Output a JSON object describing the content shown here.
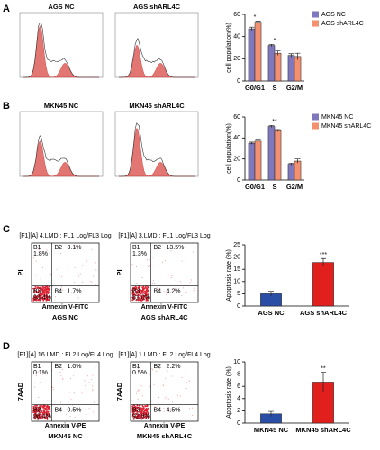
{
  "panels": [
    "A",
    "B",
    "C",
    "D"
  ],
  "flow_cytometry": {
    "histograms": [
      {
        "title": "AGS NC"
      },
      {
        "title": "AGS shARL4C"
      },
      {
        "title": "MKN45 NC"
      },
      {
        "title": "MKN45 shARL4C"
      }
    ],
    "dot_plots": [
      {
        "header": "[F1][A] 4.LMD : FL1 Log/FL3 Log",
        "y_label": "PI",
        "x_label": "Annexin V-FITC",
        "caption": "AGS NC",
        "quadrants": [
          {
            "name": "B1",
            "value": "1.8%"
          },
          {
            "name": "B2",
            "value": "3.1%"
          },
          {
            "name": "B3",
            "value": "93.4%"
          },
          {
            "name": "B4",
            "value": "1.7%"
          }
        ]
      },
      {
        "header": "[F1][A] 3.LMD : FL1 Log/FL3 Log",
        "y_label": "PI",
        "x_label": "Annexin V-FITC",
        "caption": "AGS shARL4C",
        "quadrants": [
          {
            "name": "B1",
            "value": "1.3%"
          },
          {
            "name": "B2",
            "value": "13.5%"
          },
          {
            "name": "B3",
            "value": "81.0%"
          },
          {
            "name": "B4",
            "value": "4.2%"
          }
        ]
      },
      {
        "header": "[F1][A] 16.LMD : FL2 Log/FL4 Log",
        "y_label": "7AAD",
        "x_label": "Annexin V-PE",
        "caption": "MKN45 NC",
        "quadrants": [
          {
            "name": "B1",
            "value": "0.1%"
          },
          {
            "name": "B2",
            "value": "1.0%"
          },
          {
            "name": "B3",
            "value": "98.4%"
          },
          {
            "name": "B4",
            "value": "0.5%"
          }
        ]
      },
      {
        "header": "[F1][A] 1.LMD : FL2 Log/FL4 Log",
        "y_label": "7AAD",
        "x_label": "Annexin V-PE",
        "caption": "MKN45 shARL4C",
        "quadrants": [
          {
            "name": "B1",
            "value": "0.5%"
          },
          {
            "name": "B2",
            "value": "2.2%"
          },
          {
            "name": "B3",
            "value": "92.8%"
          },
          {
            "name": "B4",
            "value": "4.5%"
          }
        ]
      }
    ]
  },
  "chart_data": [
    {
      "type": "bar",
      "y_label": "cell population(%)",
      "categories": [
        "G0/G1",
        "S",
        "G2/M"
      ],
      "series": [
        {
          "name": "AGS NC",
          "color": "#7f78bd",
          "values": [
            47,
            32,
            23
          ],
          "errors": [
            1.5,
            1,
            1.5
          ]
        },
        {
          "name": "AGS shARL4C",
          "color": "#f2906f",
          "values": [
            53,
            25,
            22
          ],
          "errors": [
            1,
            2,
            3
          ]
        }
      ],
      "annotations": [
        {
          "text": "*",
          "category": 0
        },
        {
          "text": "*",
          "category": 1
        }
      ],
      "ylim": [
        0,
        60
      ],
      "yticks": [
        0,
        20,
        40,
        60
      ]
    },
    {
      "type": "bar",
      "y_label": "cell population(%)",
      "categories": [
        "G0/G1",
        "S",
        "G2/M"
      ],
      "series": [
        {
          "name": "MKN45 NC",
          "color": "#7f78bd",
          "values": [
            35,
            51,
            15
          ],
          "errors": [
            1,
            1,
            1
          ]
        },
        {
          "name": "MKN45 shARL4C",
          "color": "#f2906f",
          "values": [
            37,
            47,
            18
          ],
          "errors": [
            1,
            1,
            2
          ]
        }
      ],
      "annotations": [
        {
          "text": "**",
          "category": 1
        }
      ],
      "ylim": [
        0,
        60
      ],
      "yticks": [
        0,
        20,
        40,
        60
      ]
    },
    {
      "type": "bar",
      "y_label": "Apoptosis rate (%)",
      "categories": [
        "AGS NC",
        "AGS shARL4C"
      ],
      "values": [
        5,
        17.8
      ],
      "errors": [
        1,
        1.6
      ],
      "colors": [
        "#2a4ea6",
        "#e11f1c"
      ],
      "annotations": [
        {
          "text": "***",
          "category": 1
        }
      ],
      "ylim": [
        0,
        25
      ],
      "yticks": [
        0,
        5,
        10,
        15,
        20,
        25
      ]
    },
    {
      "type": "bar",
      "y_label": "Apoptosis rate (%)",
      "categories": [
        "MKN45 NC",
        "MKN45 shARL4C"
      ],
      "values": [
        1.5,
        6.7
      ],
      "errors": [
        0.4,
        1.6
      ],
      "colors": [
        "#2a4ea6",
        "#e11f1c"
      ],
      "annotations": [
        {
          "text": "**",
          "category": 1
        }
      ],
      "ylim": [
        0,
        10
      ],
      "yticks": [
        0,
        2,
        4,
        6,
        8,
        10
      ]
    }
  ]
}
